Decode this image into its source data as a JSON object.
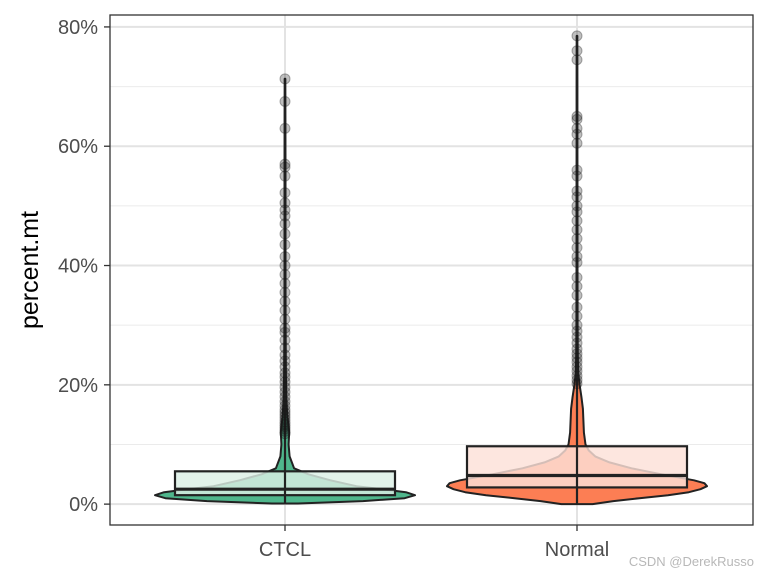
{
  "chart_data": {
    "type": "violin",
    "ylabel": "percent.mt",
    "xlabel": "",
    "ylim": [
      -3.5,
      82
    ],
    "yticks": [
      0,
      20,
      40,
      60,
      80
    ],
    "ytick_labels": [
      "0%",
      "20%",
      "40%",
      "60%",
      "80%"
    ],
    "grid": true,
    "categories": [
      "CTCL",
      "Normal"
    ],
    "groups": [
      {
        "name": "CTCL",
        "fill": "#4FB68C",
        "box_fill": "#DCEFE5",
        "box": {
          "q1": 1.5,
          "median": 2.5,
          "q3": 5.5
        },
        "density_profile": [
          [
            0.1,
            0.1
          ],
          [
            0.5,
            0.6
          ],
          [
            1.0,
            0.92
          ],
          [
            1.5,
            1.0
          ],
          [
            2.0,
            0.93
          ],
          [
            2.5,
            0.75
          ],
          [
            3.0,
            0.55
          ],
          [
            4.0,
            0.35
          ],
          [
            5.0,
            0.18
          ],
          [
            6.0,
            0.07
          ],
          [
            8.0,
            0.035
          ],
          [
            10.0,
            0.028
          ],
          [
            12.0,
            0.032
          ],
          [
            13.0,
            0.028
          ],
          [
            15.0,
            0.017
          ],
          [
            18.0,
            0.01
          ],
          [
            22.0,
            0.007
          ],
          [
            30.0,
            0.005
          ],
          [
            40.0,
            0.004
          ],
          [
            55.0,
            0.004
          ],
          [
            65.0,
            0.003
          ],
          [
            71.3,
            0.002
          ]
        ],
        "outliers": [
          11.8,
          12.2,
          12.6,
          13.0,
          13.4,
          13.8,
          14.3,
          14.8,
          15.3,
          15.8,
          16.5,
          17.2,
          18.0,
          18.8,
          19.6,
          20.5,
          21.3,
          22.0,
          23.0,
          24.0,
          25.0,
          26.2,
          27.5,
          28.8,
          29.5,
          31.0,
          32.5,
          34.0,
          35.5,
          37.0,
          38.5,
          40.0,
          41.5,
          43.5,
          45.3,
          47.0,
          48.3,
          49.3,
          50.5,
          52.2,
          55.0,
          56.5,
          57.0,
          63.0,
          67.5,
          71.3
        ]
      },
      {
        "name": "Normal",
        "fill": "#FC7E54",
        "box_fill": "#FDE0D8",
        "box": {
          "q1": 2.8,
          "median": 4.8,
          "q3": 9.7
        },
        "density_profile": [
          [
            0.0,
            0.12
          ],
          [
            0.5,
            0.28
          ],
          [
            1.0,
            0.48
          ],
          [
            1.5,
            0.7
          ],
          [
            2.0,
            0.86
          ],
          [
            2.5,
            0.95
          ],
          [
            3.0,
            1.0
          ],
          [
            3.5,
            0.98
          ],
          [
            4.0,
            0.9
          ],
          [
            5.0,
            0.65
          ],
          [
            6.0,
            0.42
          ],
          [
            7.0,
            0.25
          ],
          [
            8.0,
            0.14
          ],
          [
            9.0,
            0.09
          ],
          [
            10.0,
            0.065
          ],
          [
            12.0,
            0.053
          ],
          [
            14.0,
            0.049
          ],
          [
            16.0,
            0.045
          ],
          [
            18.0,
            0.034
          ],
          [
            20.0,
            0.02
          ],
          [
            22.0,
            0.009
          ],
          [
            25.0,
            0.006
          ],
          [
            30.0,
            0.005
          ],
          [
            40.0,
            0.004
          ],
          [
            50.0,
            0.004
          ],
          [
            60.0,
            0.003
          ],
          [
            70.0,
            0.003
          ],
          [
            78.5,
            0.002
          ]
        ],
        "outliers": [
          20.2,
          20.8,
          21.5,
          22.3,
          23.0,
          23.8,
          24.5,
          25.2,
          26.0,
          27.0,
          28.0,
          29.0,
          30.0,
          31.5,
          33.0,
          35.0,
          36.5,
          38.0,
          40.5,
          41.5,
          43.0,
          44.5,
          46.0,
          47.5,
          49.0,
          50.0,
          51.5,
          52.5,
          55.0,
          56.0,
          60.5,
          62.0,
          63.0,
          64.5,
          65.0,
          74.5,
          76.0,
          78.5
        ]
      }
    ],
    "watermark": "CSDN @DerekRusso"
  }
}
